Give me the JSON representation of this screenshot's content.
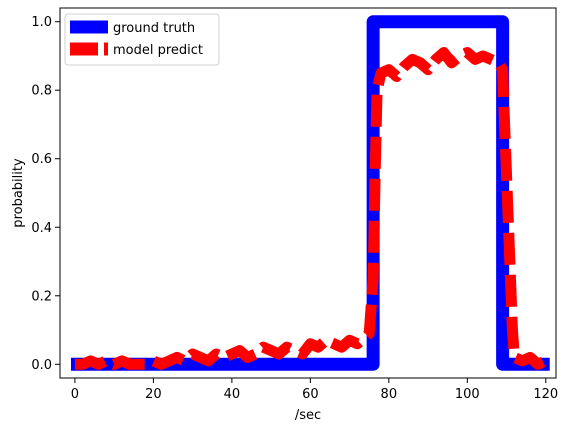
{
  "chart_data": {
    "type": "line",
    "title": "",
    "xlabel": "/sec",
    "ylabel": "probability",
    "xlim": [
      -3.8,
      122.6
    ],
    "ylim": [
      -0.04,
      1.04
    ],
    "xticks": [
      0,
      20,
      40,
      60,
      80,
      100,
      120
    ],
    "yticks": [
      0.0,
      0.2,
      0.4,
      0.6,
      0.8,
      1.0
    ],
    "xtick_labels": [
      "0",
      "20",
      "40",
      "60",
      "80",
      "100",
      "120"
    ],
    "ytick_labels": [
      "0.0",
      "0.2",
      "0.4",
      "0.6",
      "0.8",
      "1.0"
    ],
    "grid": false,
    "legend_position": "top-left",
    "series": [
      {
        "name": "ground truth",
        "color": "#0000ff",
        "style": "solid",
        "x": [
          -1,
          76,
          76,
          109,
          109,
          121
        ],
        "y": [
          0,
          0,
          1,
          1,
          0,
          0
        ]
      },
      {
        "name": "model predict",
        "color": "#ff0000",
        "style": "dashed",
        "x": [
          0,
          2,
          4,
          6,
          8,
          10,
          12,
          14,
          16,
          18,
          20,
          22,
          24,
          26,
          28,
          30,
          32,
          34,
          36,
          38,
          40,
          42,
          44,
          46,
          48,
          50,
          52,
          54,
          56,
          58,
          60,
          62,
          64,
          66,
          68,
          70,
          72,
          74,
          75,
          76,
          76.5,
          77,
          78,
          80,
          82,
          84,
          86,
          88,
          90,
          92,
          94,
          96,
          98,
          100,
          102,
          104,
          106,
          108,
          109,
          109.5,
          110,
          110.5,
          111,
          111.5,
          112,
          114,
          116,
          118,
          120
        ],
        "y": [
          0.0,
          0.0,
          0.01,
          0.0,
          0.01,
          0.0,
          0.01,
          0.0,
          0.0,
          0.0,
          0.01,
          0.0,
          0.01,
          0.02,
          0.01,
          0.03,
          0.02,
          0.01,
          0.03,
          0.02,
          0.03,
          0.04,
          0.02,
          0.03,
          0.05,
          0.04,
          0.03,
          0.05,
          0.04,
          0.03,
          0.06,
          0.05,
          0.07,
          0.06,
          0.05,
          0.07,
          0.06,
          0.08,
          0.09,
          0.25,
          0.55,
          0.8,
          0.85,
          0.86,
          0.84,
          0.87,
          0.89,
          0.88,
          0.86,
          0.89,
          0.91,
          0.88,
          0.9,
          0.91,
          0.89,
          0.9,
          0.89,
          0.88,
          0.86,
          0.7,
          0.55,
          0.4,
          0.25,
          0.1,
          0.02,
          0.01,
          0.02,
          0.0,
          0.01
        ]
      }
    ]
  }
}
